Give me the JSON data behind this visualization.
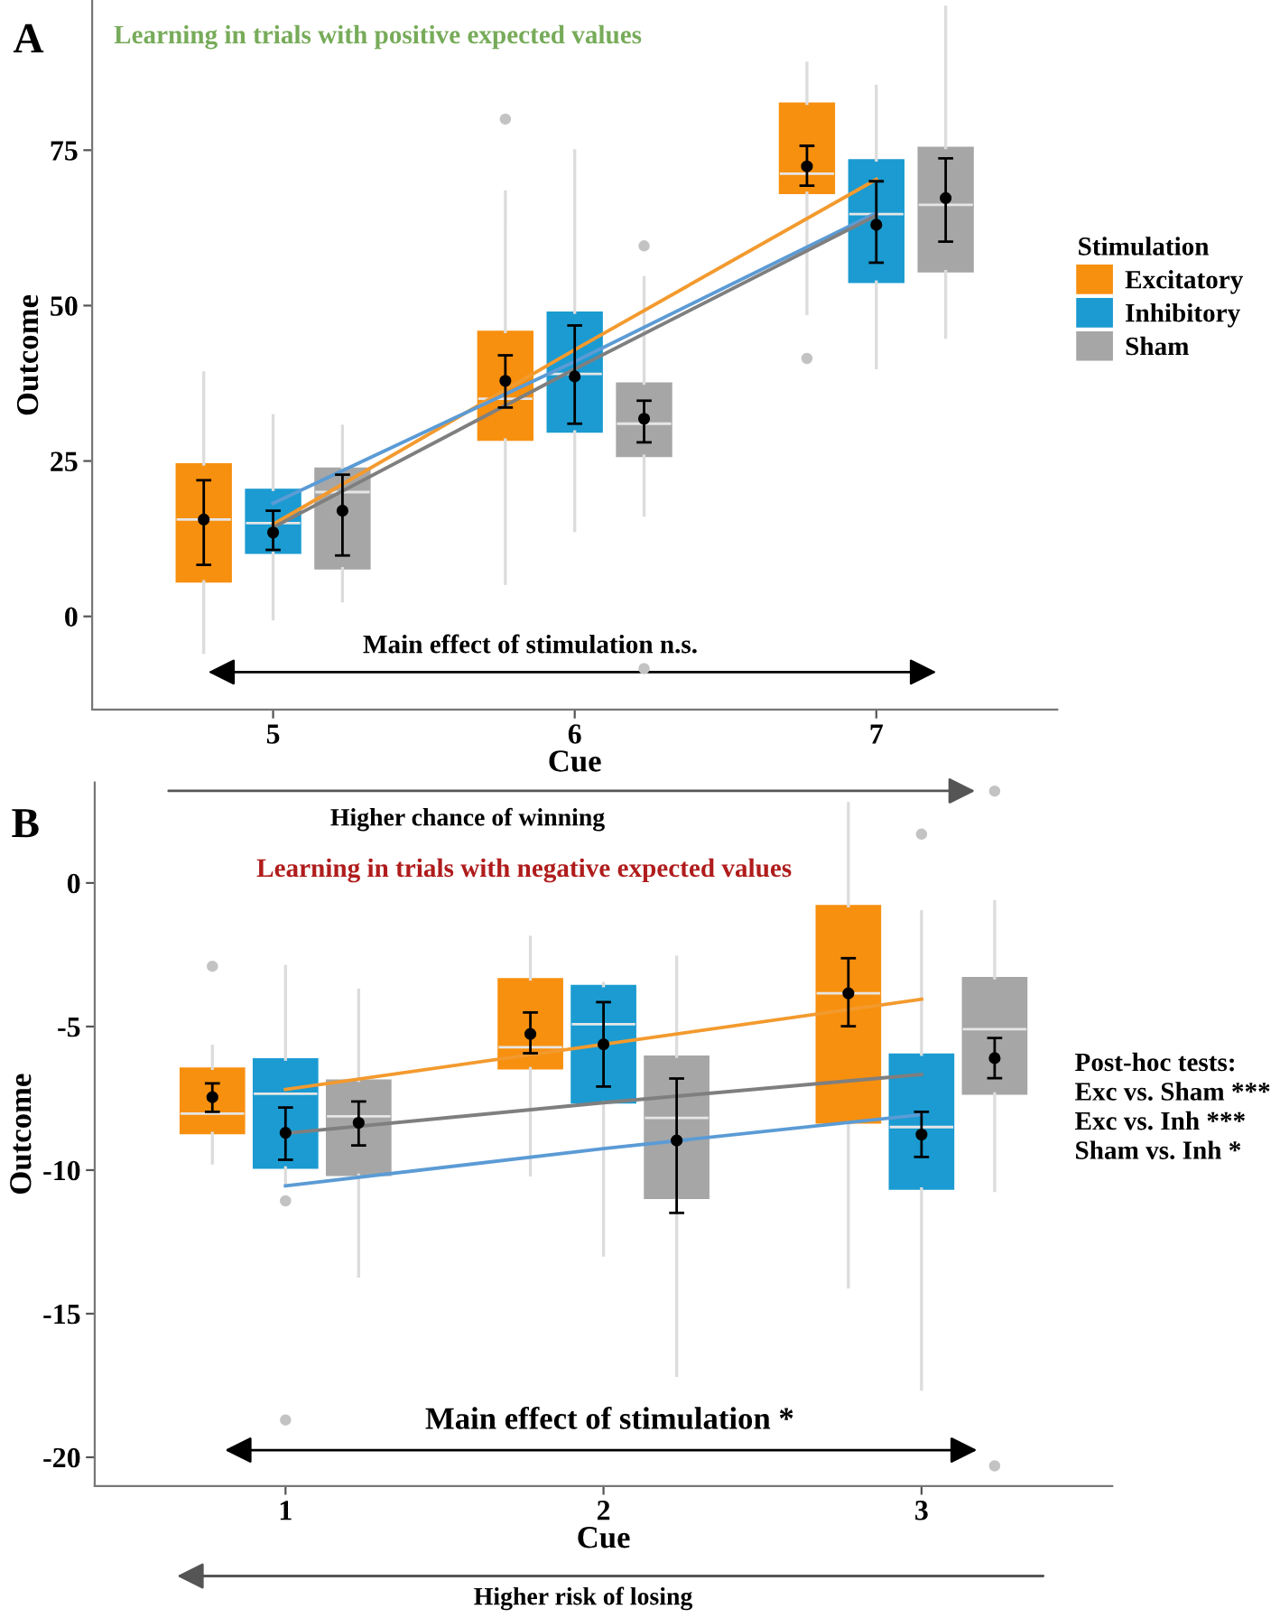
{
  "chart_data": [
    {
      "type": "box",
      "title": "Learning in trials with positive expected values",
      "xlabel": "Cue",
      "ylabel": "Outcome",
      "xlim": [
        4.4,
        7.6
      ],
      "xticks": [
        5,
        6,
        7
      ],
      "ylim": [
        -15,
        99
      ],
      "yticks": [
        0,
        25,
        50,
        75
      ],
      "grid": false,
      "legend": "right",
      "legend_title": "Stimulation",
      "annotations": [
        "A",
        "Main effect of stimulation n.s.",
        "Higher chance of winning"
      ],
      "series": [
        {
          "name": "Excitatory",
          "color": "#f7900f",
          "x": [
            4.77,
            5.77,
            6.77
          ],
          "boxes": [
            {
              "low": -5.8,
              "q1": 5.6,
              "median": 15.6,
              "q3": 24.5,
              "high": 39.2
            },
            {
              "low": 5.3,
              "q1": 28.4,
              "median": 35,
              "q3": 45.8,
              "high": 68.3,
              "outliers": [
                80
              ]
            },
            {
              "low": 48.7,
              "q1": 68.1,
              "median": 71.2,
              "q3": 82.5,
              "high": 89,
              "outliers": [
                41.5
              ]
            }
          ]
        },
        {
          "name": "Inhibitory",
          "color": "#1b9bd1",
          "x": [
            5,
            6,
            7
          ],
          "boxes": [
            {
              "low": -0.4,
              "q1": 10.2,
              "median": 15,
              "q3": 20.4,
              "high": 32.3
            },
            {
              "low": 13.8,
              "q1": 29.7,
              "median": 39,
              "q3": 48.9,
              "high": 74.9
            },
            {
              "low": 40,
              "q1": 53.8,
              "median": 64.7,
              "q3": 73.4,
              "high": 85.3
            }
          ]
        },
        {
          "name": "Sham",
          "color": "#a6a6a6",
          "x": [
            5.23,
            6.23,
            7.23
          ],
          "boxes": [
            {
              "low": 2.5,
              "q1": 7.7,
              "median": 20,
              "q3": 23.8,
              "high": 30.6
            },
            {
              "low": 16.3,
              "q1": 25.8,
              "median": 31,
              "q3": 37.5,
              "high": 54.5,
              "outliers": [
                59.6,
                -8.4
              ]
            },
            {
              "low": 44.9,
              "q1": 55.5,
              "median": 66.2,
              "q3": 75.4,
              "high": 98
            }
          ]
        },
        {
          "type": "line",
          "color": "#f39a2e",
          "x": [
            5,
            6,
            7
          ],
          "values": [
            14.8,
            42.9,
            70.3
          ]
        },
        {
          "type": "line",
          "color": "#5b9bd5",
          "x": [
            5,
            6,
            7
          ],
          "values": [
            18.2,
            41,
            64.9
          ]
        },
        {
          "type": "line",
          "color": "#7f7f7f",
          "x": [
            5,
            6,
            7
          ],
          "values": [
            14.3,
            39.8,
            64.5
          ]
        },
        {
          "type": "scatter",
          "color": "#000000",
          "marker": "circle",
          "x": [
            4.77,
            5.77,
            6.77,
            5,
            6,
            7,
            5.23,
            6.23,
            7.23
          ],
          "values": [
            15.6,
            37.9,
            72.4,
            13.5,
            38.6,
            63,
            17,
            31.8,
            67.3
          ],
          "errors": [
            [
              8.3,
              21.9
            ],
            [
              33.6,
              42
            ],
            [
              69.3,
              75.7
            ],
            [
              10.7,
              17
            ],
            [
              31,
              46.8
            ],
            [
              56.9,
              70
            ],
            [
              9.8,
              22.8
            ],
            [
              28,
              34.7
            ],
            [
              60.3,
              73.7
            ]
          ]
        }
      ]
    },
    {
      "type": "box",
      "title": "Learning in trials with negative expected values",
      "xlabel": "Cue",
      "ylabel": "Outcome",
      "xlim": [
        0.4,
        3.6
      ],
      "xticks": [
        1,
        2,
        3
      ],
      "ylim": [
        -21,
        3.5
      ],
      "yticks": [
        0,
        -5,
        -10,
        -15,
        -20
      ],
      "grid": false,
      "annotations": [
        "B",
        "Main effect of stimulation *",
        "Higher risk of losing",
        "Post-hoc tests:\nExc vs. Sham ***\nExc vs. Inh ***\nSham vs. Inh *"
      ],
      "series": [
        {
          "color": "#f7900f",
          "x": [
            0.77,
            1.77,
            2.77
          ],
          "boxes": [
            {
              "low": -9.75,
              "q1": -8.72,
              "median": -8.03,
              "q3": -6.46,
              "high": -5.68,
              "outliers": [
                -2.9
              ]
            },
            {
              "low": -10.17,
              "q1": -6.46,
              "median": -5.72,
              "q3": -3.35,
              "high": -1.89
            },
            {
              "low": -14.07,
              "q1": -8.35,
              "median": -3.84,
              "q3": -0.8,
              "high": 2.77
            }
          ]
        },
        {
          "color": "#1b9bd1",
          "x": [
            1,
            2,
            3
          ],
          "boxes": [
            {
              "low": -10.5,
              "q1": -9.92,
              "median": -7.34,
              "q3": -6.14,
              "high": -2.9,
              "outliers": [
                -11.07,
                -18.7
              ]
            },
            {
              "low": -12.96,
              "q1": -7.65,
              "median": -4.92,
              "q3": -3.58,
              "high": -3.5
            },
            {
              "low": -17.63,
              "q1": -10.65,
              "median": -8.5,
              "q3": -5.97,
              "high": -1.0,
              "outliers": [
                1.7
              ]
            }
          ]
        },
        {
          "color": "#a6a6a6",
          "x": [
            1.23,
            2.23,
            3.23
          ],
          "boxes": [
            {
              "low": -13.69,
              "q1": -10.17,
              "median": -8.13,
              "q3": -6.88,
              "high": -3.73
            },
            {
              "low": -17.15,
              "q1": -10.97,
              "median": -8.18,
              "q3": -6.04,
              "high": -2.58
            },
            {
              "low": -10.71,
              "q1": -7.34,
              "median": -5.09,
              "q3": -3.31,
              "high": -0.65,
              "outliers": [
                -20.3,
                3.2
              ]
            }
          ]
        },
        {
          "type": "line",
          "color": "#f39a2e",
          "x": [
            1,
            2,
            3
          ],
          "values": [
            -7.19,
            -5.62,
            -4.05
          ]
        },
        {
          "type": "line",
          "color": "#7f7f7f",
          "x": [
            1,
            2,
            3
          ],
          "values": [
            -8.72,
            -7.65,
            -6.67
          ]
        },
        {
          "type": "line",
          "color": "#5b9bd5",
          "x": [
            1,
            2,
            3
          ],
          "values": [
            -10.55,
            -9.25,
            -8.07
          ]
        },
        {
          "type": "scatter",
          "color": "#000000",
          "marker": "circle",
          "x": [
            0.77,
            1.77,
            2.77,
            1,
            2,
            3,
            1.23,
            2.23,
            3.23
          ],
          "values": [
            -7.46,
            -5.26,
            -3.84,
            -8.7,
            -5.62,
            -8.76,
            -8.35,
            -8.97,
            -6.1
          ],
          "errors": [
            [
              -7.97,
              -6.98
            ],
            [
              -5.93,
              -4.51
            ],
            [
              -4.99,
              -2.62
            ],
            [
              -9.64,
              -7.82
            ],
            [
              -7.09,
              -4.15
            ],
            [
              -9.54,
              -7.97
            ],
            [
              -9.14,
              -7.61
            ],
            [
              -11.49,
              -6.81
            ],
            [
              -6.8,
              -5.4
            ]
          ]
        }
      ]
    }
  ]
}
